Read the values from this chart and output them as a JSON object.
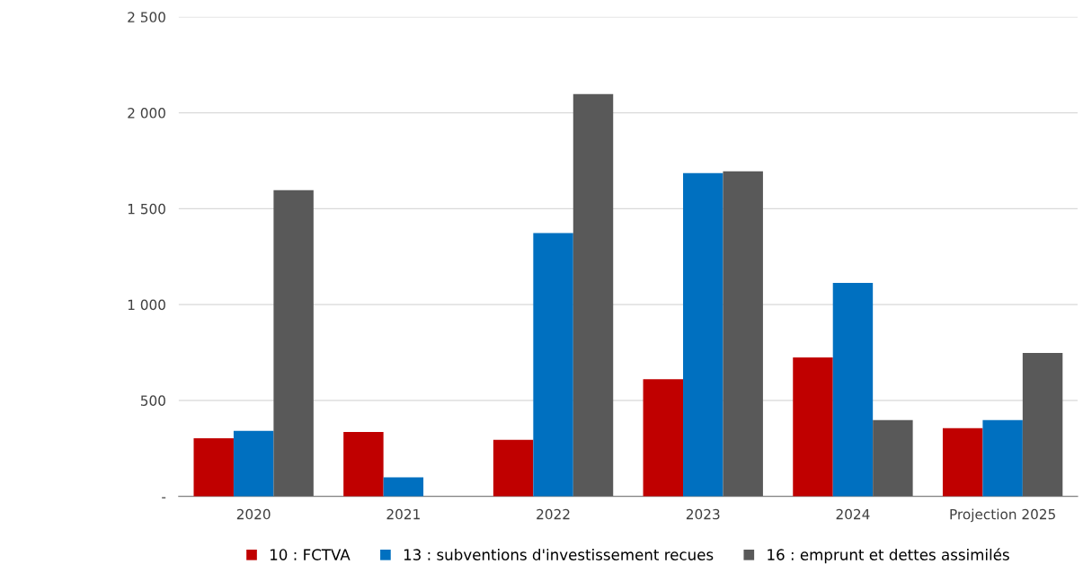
{
  "chart_data": {
    "type": "bar",
    "categories": [
      "2020",
      "2021",
      "2022",
      "2023",
      "2024",
      "Projection 2025"
    ],
    "series": [
      {
        "name": "10 : FCTVA",
        "color": "#c00000",
        "values": [
          303,
          336,
          294,
          611,
          724,
          355
        ]
      },
      {
        "name": "13 : subventions d'investissement recues",
        "color": "#0070c0",
        "values": [
          341,
          99,
          1373,
          1686,
          1113,
          398
        ]
      },
      {
        "name": "16 : emprunt et dettes assimilés",
        "color": "#595959",
        "values": [
          1596,
          null,
          2098,
          1695,
          398,
          748
        ]
      }
    ],
    "ylim": [
      0,
      2500
    ],
    "yticks": [
      {
        "value": 0,
        "label": "-"
      },
      {
        "value": 500,
        "label": "500"
      },
      {
        "value": 1000,
        "label": "1 000"
      },
      {
        "value": 1500,
        "label": "1 500"
      },
      {
        "value": 2000,
        "label": "2 000"
      },
      {
        "value": 2500,
        "label": "2 500"
      }
    ],
    "grid": "y",
    "legend": "bottom"
  }
}
